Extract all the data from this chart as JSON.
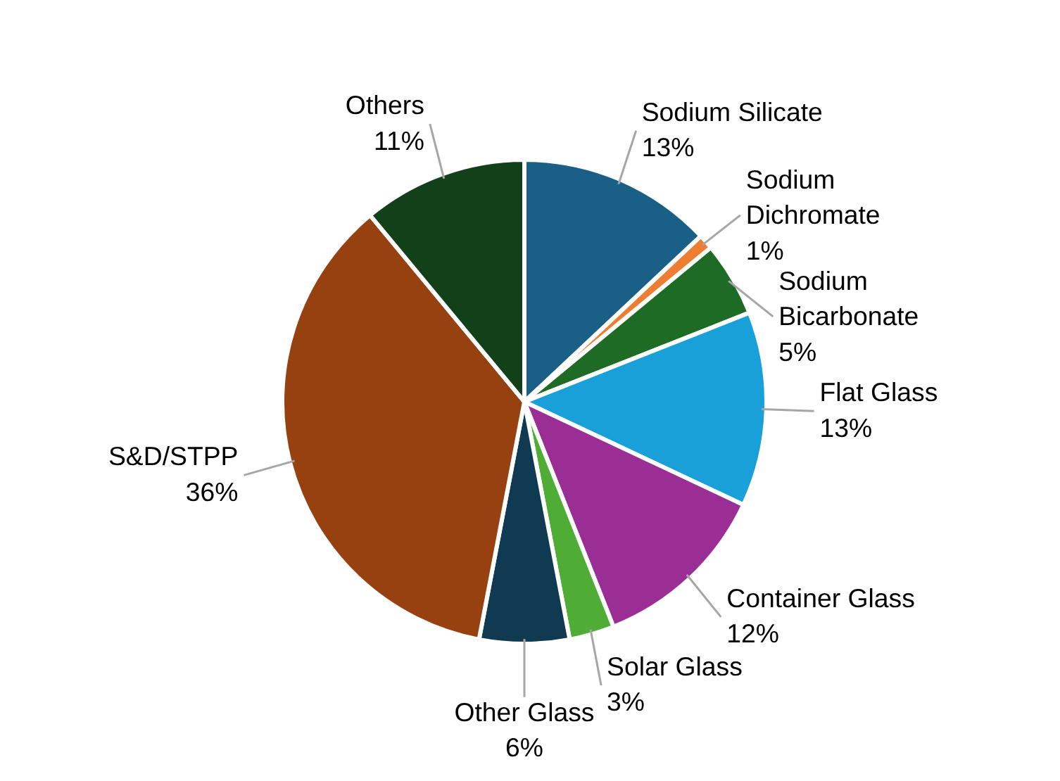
{
  "chart_data": {
    "type": "pie",
    "categories": [
      "Sodium Silicate",
      "Sodium Dichromate",
      "Sodium Bicarbonate",
      "Flat Glass",
      "Container Glass",
      "Solar Glass",
      "Other Glass",
      "S&D/STPP",
      "Others"
    ],
    "values": [
      13,
      1,
      5,
      13,
      12,
      3,
      6,
      36,
      11
    ],
    "value_labels": [
      "13%",
      "1%",
      "5%",
      "13%",
      "12%",
      "3%",
      "6%",
      "36%",
      "11%"
    ],
    "colors": [
      "#1a5f85",
      "#ed7d31",
      "#1e6b25",
      "#1aa0d8",
      "#9b2e94",
      "#4fad35",
      "#0f3a52",
      "#974010",
      "#124018"
    ]
  }
}
